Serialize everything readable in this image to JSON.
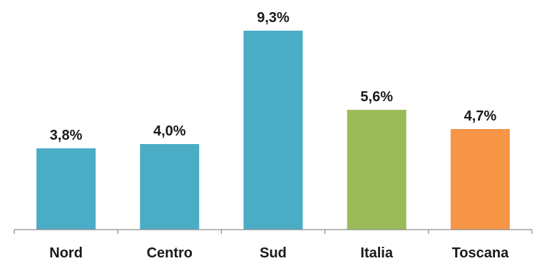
{
  "chart_data": {
    "type": "bar",
    "categories": [
      "Nord",
      "Centro",
      "Sud",
      "Italia",
      "Toscana"
    ],
    "values": [
      3.8,
      4.0,
      9.3,
      5.6,
      4.7
    ],
    "value_labels": [
      "3,8%",
      "4,0%",
      "9,3%",
      "5,6%",
      "4,7%"
    ],
    "colors": [
      "#4bacc6",
      "#4bacc6",
      "#4bacc6",
      "#9bbb59",
      "#f79646"
    ],
    "title": "",
    "xlabel": "",
    "ylabel": "",
    "ylim": [
      0,
      9.3
    ],
    "grid": false,
    "legend": "none"
  }
}
